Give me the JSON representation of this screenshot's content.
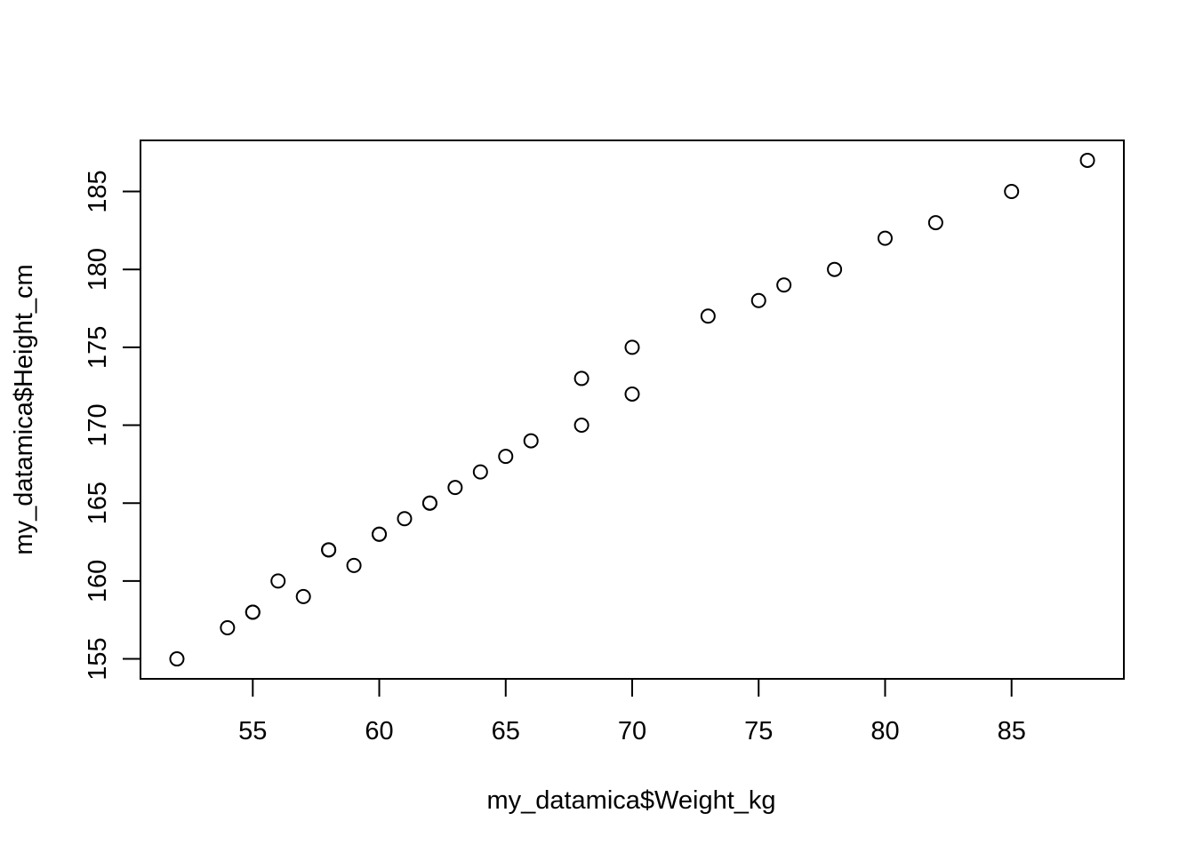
{
  "chart_data": {
    "type": "scatter",
    "title": "",
    "xlabel": "my_datamica$Weight_kg",
    "ylabel": "my_datamica$Height_cm",
    "xlim": [
      50.56,
      89.44
    ],
    "ylim": [
      153.72,
      188.28
    ],
    "xticks": [
      55,
      60,
      65,
      70,
      75,
      80,
      85
    ],
    "yticks": [
      155,
      160,
      165,
      170,
      175,
      180,
      185
    ],
    "grid": false,
    "legend": "none",
    "points": [
      {
        "x": 52,
        "y": 155
      },
      {
        "x": 54,
        "y": 157
      },
      {
        "x": 55,
        "y": 158
      },
      {
        "x": 55,
        "y": 158
      },
      {
        "x": 56,
        "y": 160
      },
      {
        "x": 57,
        "y": 159
      },
      {
        "x": 58,
        "y": 162
      },
      {
        "x": 58,
        "y": 162
      },
      {
        "x": 59,
        "y": 161
      },
      {
        "x": 60,
        "y": 163
      },
      {
        "x": 60,
        "y": 163
      },
      {
        "x": 61,
        "y": 164
      },
      {
        "x": 62,
        "y": 165
      },
      {
        "x": 62,
        "y": 165
      },
      {
        "x": 63,
        "y": 166
      },
      {
        "x": 64,
        "y": 167
      },
      {
        "x": 65,
        "y": 168
      },
      {
        "x": 66,
        "y": 169
      },
      {
        "x": 68,
        "y": 170
      },
      {
        "x": 68,
        "y": 173
      },
      {
        "x": 70,
        "y": 172
      },
      {
        "x": 70,
        "y": 175
      },
      {
        "x": 73,
        "y": 177
      },
      {
        "x": 75,
        "y": 178
      },
      {
        "x": 76,
        "y": 179
      },
      {
        "x": 78,
        "y": 180
      },
      {
        "x": 80,
        "y": 182
      },
      {
        "x": 82,
        "y": 183
      },
      {
        "x": 85,
        "y": 185
      },
      {
        "x": 88,
        "y": 187
      }
    ]
  }
}
